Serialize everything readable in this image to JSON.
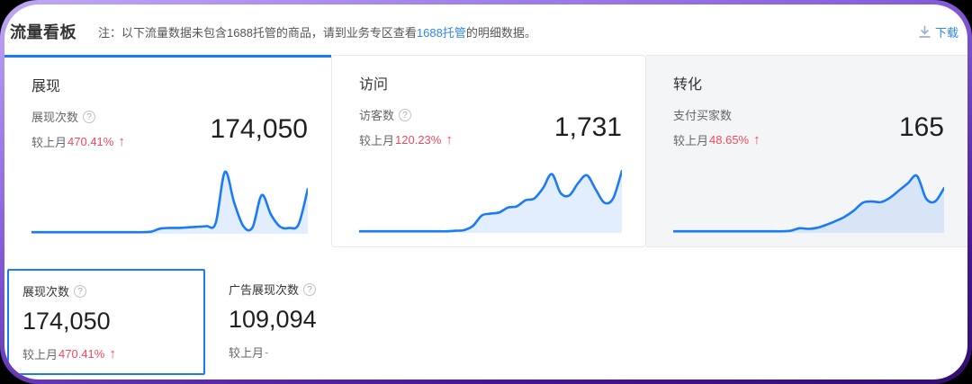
{
  "header": {
    "title": "流量看板",
    "note_prefix": "注：以下流量数据未包含1688托管的商品，请到业务专区查看",
    "note_link": "1688托管",
    "note_suffix": "的明细数据。",
    "download_label": "下载"
  },
  "tabs": [
    {
      "title": "展现",
      "metric_label": "展现次数",
      "value": "174,050",
      "compare_label": "较上月",
      "compare_value": "470.41%",
      "trend": "up",
      "active": true
    },
    {
      "title": "访问",
      "metric_label": "访客数",
      "value": "1,731",
      "compare_label": "较上月",
      "compare_value": "120.23%",
      "trend": "up",
      "active": false
    },
    {
      "title": "转化",
      "metric_label": "支付买家数",
      "value": "165",
      "compare_label": "较上月",
      "compare_value": "48.65%",
      "trend": "up",
      "active": false
    }
  ],
  "sub_metrics": [
    {
      "label": "展现次数",
      "value": "174,050",
      "compare_label": "较上月",
      "compare_value": "470.41%",
      "trend": "up",
      "selected": true
    },
    {
      "label": "广告展现次数",
      "value": "109,094",
      "compare_label": "较上月",
      "compare_value": "-",
      "trend": "none",
      "selected": false
    }
  ],
  "chart_data": [
    {
      "type": "area",
      "name": "展现次数趋势",
      "ylim": [
        0,
        1
      ],
      "grid": false,
      "values": [
        0.01,
        0.01,
        0.01,
        0.01,
        0.01,
        0.01,
        0.01,
        0.01,
        0.01,
        0.01,
        0.01,
        0.01,
        0.01,
        0.02,
        0.07,
        0.08,
        0.08,
        0.09,
        0.1,
        0.11,
        0.16,
        1.0,
        0.5,
        0.11,
        0.09,
        0.62,
        0.3,
        0.1,
        0.08,
        0.14,
        0.72
      ]
    },
    {
      "type": "area",
      "name": "访客数趋势",
      "ylim": [
        0,
        1
      ],
      "grid": false,
      "values": [
        0.01,
        0.01,
        0.01,
        0.01,
        0.01,
        0.01,
        0.01,
        0.01,
        0.01,
        0.01,
        0.01,
        0.02,
        0.03,
        0.1,
        0.27,
        0.3,
        0.32,
        0.4,
        0.42,
        0.52,
        0.55,
        0.72,
        0.95,
        0.64,
        0.6,
        0.8,
        0.93,
        0.7,
        0.48,
        0.55,
        1.0
      ]
    },
    {
      "type": "area",
      "name": "支付买家数趋势",
      "ylim": [
        0,
        1
      ],
      "grid": false,
      "values": [
        0.01,
        0.01,
        0.01,
        0.01,
        0.01,
        0.01,
        0.01,
        0.01,
        0.01,
        0.01,
        0.01,
        0.01,
        0.01,
        0.02,
        0.06,
        0.05,
        0.07,
        0.12,
        0.18,
        0.25,
        0.35,
        0.48,
        0.5,
        0.49,
        0.56,
        0.68,
        0.8,
        0.92,
        0.55,
        0.5,
        0.72
      ]
    }
  ],
  "colors": {
    "accent_blue": "#1a7af8",
    "link_blue": "#2f86f6",
    "rise_red": "#f5485c",
    "inactive_bg": "#f4f5f7",
    "frame_purple_top": "#bfa8f6",
    "frame_purple_bottom": "#330d6e"
  }
}
